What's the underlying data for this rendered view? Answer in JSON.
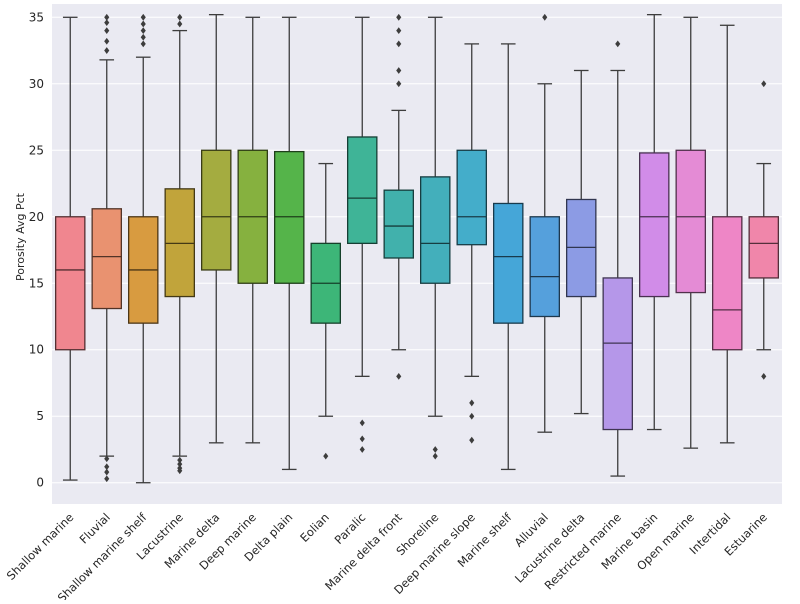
{
  "chart_data": {
    "type": "box",
    "title": "",
    "xlabel": "",
    "ylabel": "Porosity Avg Pct",
    "ylim": [
      -1.6,
      36
    ],
    "yticks": [
      0,
      5,
      10,
      15,
      20,
      25,
      30,
      35
    ],
    "grid": true,
    "background": "#eaeaf2",
    "categories": [
      "Shallow marine",
      "Fluvial",
      "Shallow marine shelf",
      "Lacustrine",
      "Marine delta",
      "Deep marine",
      "Delta plain",
      "Eolian",
      "Paralic",
      "Marine delta front",
      "Shoreline",
      "Deep marine slope",
      "Marine shelf",
      "Alluvial",
      "Lacustrine delta",
      "Restricted marine",
      "Marine basin",
      "Open marine",
      "Intertidal",
      "Estuarine"
    ],
    "colors": [
      "#f0868f",
      "#e99270",
      "#d89b40",
      "#c1a43b",
      "#a4ac40",
      "#86b13f",
      "#55b44a",
      "#3db678",
      "#3fb497",
      "#41b1ac",
      "#43afbb",
      "#44adca",
      "#45a6d8",
      "#55a0dc",
      "#8c9be4",
      "#b597e9",
      "#d18ce8",
      "#e48bd5",
      "#ee86c6",
      "#f086aa"
    ],
    "series": [
      {
        "whislo": 0.2,
        "q1": 10,
        "median": 16,
        "q3": 20,
        "whishi": 35,
        "fliers": []
      },
      {
        "whislo": 2,
        "q1": 13.1,
        "median": 17,
        "q3": 20.6,
        "whishi": 31.8,
        "fliers": [
          1.8,
          1.2,
          0.8,
          0.3,
          32.5,
          33.2,
          34,
          34.6,
          35
        ]
      },
      {
        "whislo": 0,
        "q1": 12,
        "median": 16,
        "q3": 20,
        "whishi": 32,
        "fliers": [
          33,
          33.5,
          34,
          34.5,
          35
        ]
      },
      {
        "whislo": 2,
        "q1": 14,
        "median": 18,
        "q3": 22.1,
        "whishi": 34,
        "fliers": [
          1.7,
          1.4,
          1.1,
          0.9,
          34.5,
          35
        ]
      },
      {
        "whislo": 3,
        "q1": 16,
        "median": 20,
        "q3": 25,
        "whishi": 35.2,
        "fliers": []
      },
      {
        "whislo": 3,
        "q1": 15,
        "median": 20,
        "q3": 25,
        "whishi": 35,
        "fliers": []
      },
      {
        "whislo": 1,
        "q1": 15,
        "median": 20,
        "q3": 24.9,
        "whishi": 35,
        "fliers": []
      },
      {
        "whislo": 5,
        "q1": 12,
        "median": 15,
        "q3": 18,
        "whishi": 24,
        "fliers": [
          2
        ]
      },
      {
        "whislo": 8,
        "q1": 18,
        "median": 21.4,
        "q3": 26,
        "whishi": 35,
        "fliers": [
          4.5,
          3.3,
          2.5
        ]
      },
      {
        "whislo": 10,
        "q1": 16.9,
        "median": 19.3,
        "q3": 22,
        "whishi": 28,
        "fliers": [
          8,
          30,
          31,
          33,
          34,
          35
        ]
      },
      {
        "whislo": 5,
        "q1": 15,
        "median": 18,
        "q3": 23,
        "whishi": 35,
        "fliers": [
          2.5,
          2
        ]
      },
      {
        "whislo": 8,
        "q1": 17.9,
        "median": 20,
        "q3": 25,
        "whishi": 33,
        "fliers": [
          6,
          5,
          3.2
        ]
      },
      {
        "whislo": 1,
        "q1": 12,
        "median": 17,
        "q3": 21,
        "whishi": 33,
        "fliers": []
      },
      {
        "whislo": 3.8,
        "q1": 12.5,
        "median": 15.5,
        "q3": 20,
        "whishi": 30,
        "fliers": [
          35
        ]
      },
      {
        "whislo": 5.2,
        "q1": 14,
        "median": 17.7,
        "q3": 21.3,
        "whishi": 31,
        "fliers": []
      },
      {
        "whislo": 0.5,
        "q1": 4,
        "median": 10.5,
        "q3": 15.4,
        "whishi": 31,
        "fliers": [
          33
        ]
      },
      {
        "whislo": 4,
        "q1": 14,
        "median": 20,
        "q3": 24.8,
        "whishi": 35.2,
        "fliers": []
      },
      {
        "whislo": 2.6,
        "q1": 14.3,
        "median": 20,
        "q3": 25,
        "whishi": 35,
        "fliers": []
      },
      {
        "whislo": 3,
        "q1": 10,
        "median": 13,
        "q3": 20,
        "whishi": 34.4,
        "fliers": []
      },
      {
        "whislo": 10,
        "q1": 15.4,
        "median": 18,
        "q3": 20,
        "whishi": 24,
        "fliers": [
          8,
          30
        ]
      }
    ]
  }
}
